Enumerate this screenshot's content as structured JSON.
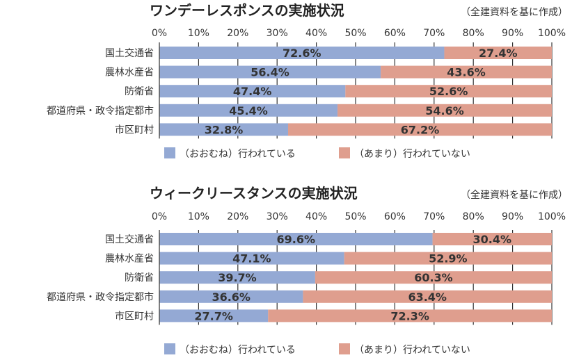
{
  "note": "（全建資料を基に作成）",
  "colors": {
    "yes": "#94a9d4",
    "no": "#df9e8e",
    "axis": "#555555",
    "grid": "#333333"
  },
  "legend": {
    "yes": "（おおむね）行われている",
    "no": "（あまり）行われていない"
  },
  "chart_data": [
    {
      "type": "bar",
      "orientation": "horizontal",
      "stacked": true,
      "title": "ワンデーレスポンスの実施状況",
      "xlim": [
        0,
        100
      ],
      "ticks": [
        "0%",
        "10%",
        "20%",
        "30%",
        "40%",
        "50%",
        "60%",
        "70%",
        "80%",
        "90%",
        "100%"
      ],
      "categories": [
        "国土交通省",
        "農林水産省",
        "防衛省",
        "都道府県・政令指定都市",
        "市区町村"
      ],
      "series": [
        {
          "name": "（おおむね）行われている",
          "values": [
            72.6,
            56.4,
            47.4,
            45.4,
            32.8
          ],
          "labels": [
            "72.6%",
            "56.4%",
            "47.4%",
            "45.4%",
            "32.8%"
          ]
        },
        {
          "name": "（あまり）行われていない",
          "values": [
            27.4,
            43.6,
            52.6,
            54.6,
            67.2
          ],
          "labels": [
            "27.4%",
            "43.6%",
            "52.6%",
            "54.6%",
            "67.2%"
          ]
        }
      ],
      "legend_position": "bottom"
    },
    {
      "type": "bar",
      "orientation": "horizontal",
      "stacked": true,
      "title": "ウィークリースタンスの実施状況",
      "xlim": [
        0,
        100
      ],
      "ticks": [
        "0%",
        "10%",
        "20%",
        "30%",
        "40%",
        "50%",
        "60%",
        "70%",
        "80%",
        "90%",
        "100%"
      ],
      "categories": [
        "国土交通省",
        "農林水産省",
        "防衛省",
        "都道府県・政令指定都市",
        "市区町村"
      ],
      "series": [
        {
          "name": "（おおむね）行われている",
          "values": [
            69.6,
            47.1,
            39.7,
            36.6,
            27.7
          ],
          "labels": [
            "69.6%",
            "47.1%",
            "39.7%",
            "36.6%",
            "27.7%"
          ]
        },
        {
          "name": "（あまり）行われていない",
          "values": [
            30.4,
            52.9,
            60.3,
            63.4,
            72.3
          ],
          "labels": [
            "30.4%",
            "52.9%",
            "60.3%",
            "63.4%",
            "72.3%"
          ]
        }
      ],
      "legend_position": "bottom"
    }
  ]
}
